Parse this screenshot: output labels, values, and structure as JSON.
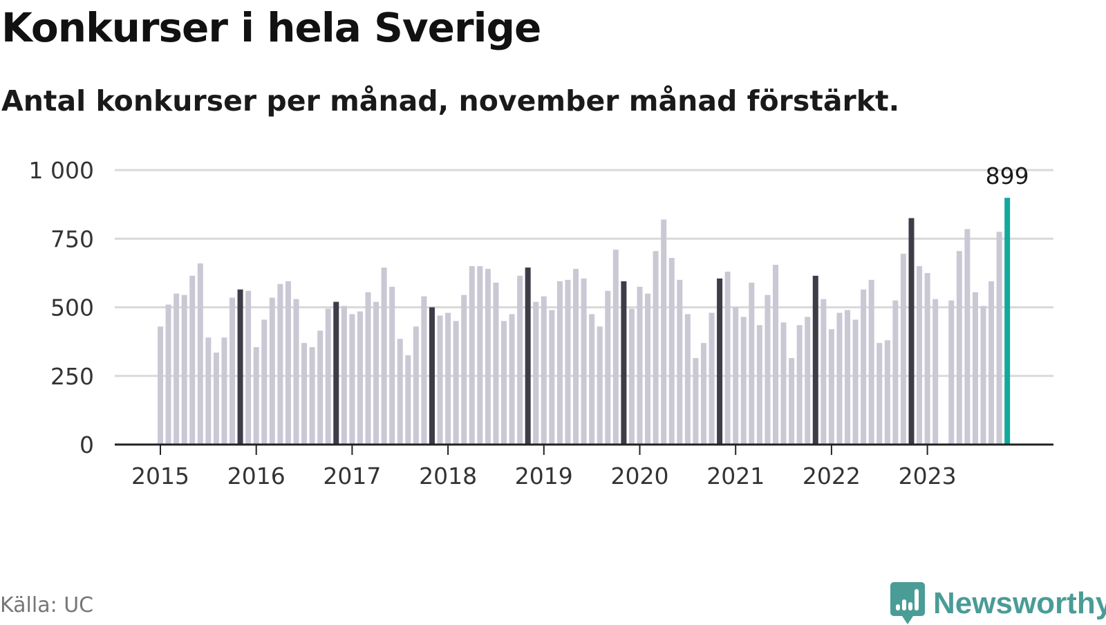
{
  "title": "Konkurser i hela Sverige",
  "subtitle": "Antal konkurser per månad, november månad förstärkt.",
  "source": "Källa: UC",
  "brand": {
    "name": "Newsworthy",
    "icon": "newsworthy-logo-icon",
    "color": "#4a9c96"
  },
  "colors": {
    "regular_bar": "#c9c8d4",
    "november_bar": "#3d3c49",
    "latest_bar": "#13a89e",
    "gridline": "#d9d9d9",
    "axis": "#222222"
  },
  "chart_data": {
    "type": "bar",
    "title": "Konkurser i hela Sverige",
    "subtitle": "Antal konkurser per månad, november månad förstärkt.",
    "xlabel": "",
    "ylabel": "",
    "ylim": [
      0,
      1000
    ],
    "yticks": [
      0,
      250,
      500,
      750,
      1000
    ],
    "ytick_labels": [
      "0",
      "250",
      "500",
      "750",
      "1 000"
    ],
    "xtick_labels": [
      "2015",
      "2016",
      "2017",
      "2018",
      "2019",
      "2020",
      "2021",
      "2022",
      "2023"
    ],
    "grid": "horizontal",
    "highlight": "november",
    "latest_label": "899",
    "series": [
      {
        "values": [
          {
            "year": 2015,
            "months": [
              430,
              510,
              550,
              545,
              615,
              660,
              390,
              335,
              390,
              535,
              565,
              560
            ]
          },
          {
            "year": 2016,
            "months": [
              355,
              455,
              535,
              585,
              595,
              530,
              370,
              355,
              415,
              495,
              520,
              505
            ]
          },
          {
            "year": 2017,
            "months": [
              475,
              485,
              555,
              520,
              645,
              575,
              385,
              325,
              430,
              540,
              500,
              470
            ]
          },
          {
            "year": 2018,
            "months": [
              480,
              450,
              545,
              650,
              650,
              640,
              590,
              450,
              475,
              615,
              645,
              520
            ]
          },
          {
            "year": 2019,
            "months": [
              540,
              490,
              595,
              600,
              640,
              605,
              475,
              430,
              560,
              710,
              595,
              495
            ]
          },
          {
            "year": 2020,
            "months": [
              575,
              550,
              705,
              820,
              680,
              600,
              475,
              315,
              370,
              480,
              605,
              630
            ]
          },
          {
            "year": 2021,
            "months": [
              500,
              465,
              590,
              435,
              545,
              655,
              445,
              315,
              435,
              465,
              615,
              530
            ]
          },
          {
            "year": 2022,
            "months": [
              420,
              480,
              490,
              455,
              565,
              600,
              370,
              380,
              525,
              695,
              825,
              650
            ]
          },
          {
            "year": 2023,
            "months": [
              625,
              530,
              null,
              525,
              705,
              785,
              555,
              505,
              595,
              775,
              899,
              null
            ]
          }
        ]
      }
    ]
  }
}
